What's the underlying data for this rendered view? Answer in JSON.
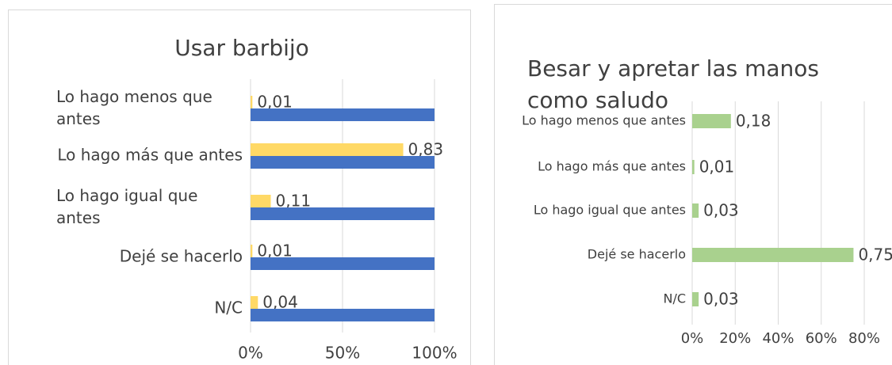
{
  "chart_data": [
    {
      "type": "bar",
      "orientation": "horizontal",
      "title": "Usar barbijo",
      "categories": [
        "Lo hago menos que antes",
        "Lo hago más que antes",
        "Lo hago igual que antes",
        "Dejé se hacerlo",
        "N/C"
      ],
      "series": [
        {
          "color": "#ffd966",
          "values": [
            0.01,
            0.83,
            0.11,
            0.01,
            0.04
          ],
          "value_labels": [
            "0,01",
            "0,83",
            "0,11",
            "0,01",
            "0,04"
          ]
        },
        {
          "color": "#4472c4",
          "values": [
            1,
            1,
            1,
            1,
            1
          ]
        }
      ],
      "xlim": [
        0,
        1
      ],
      "xticks": [
        {
          "value": 0,
          "label": "0%"
        },
        {
          "value": 0.5,
          "label": "50%"
        },
        {
          "value": 1,
          "label": "100%"
        }
      ],
      "grid": true
    },
    {
      "type": "bar",
      "orientation": "horizontal",
      "title": "Besar y apretar las manos como saludo",
      "categories": [
        "Lo hago menos que antes",
        "Lo hago más que antes",
        "Lo hago igual que antes",
        "Dejé se hacerlo",
        "N/C"
      ],
      "series": [
        {
          "color": "#a9d18e",
          "values": [
            0.18,
            0.01,
            0.03,
            0.75,
            0.03
          ],
          "value_labels": [
            "0,18",
            "0,01",
            "0,03",
            "0,75",
            "0,03"
          ]
        }
      ],
      "xlim": [
        0,
        0.8
      ],
      "xticks": [
        {
          "value": 0,
          "label": "0%"
        },
        {
          "value": 0.2,
          "label": "20%"
        },
        {
          "value": 0.4,
          "label": "40%"
        },
        {
          "value": 0.6,
          "label": "60%"
        },
        {
          "value": 0.8,
          "label": "80%"
        }
      ],
      "grid": true
    }
  ]
}
